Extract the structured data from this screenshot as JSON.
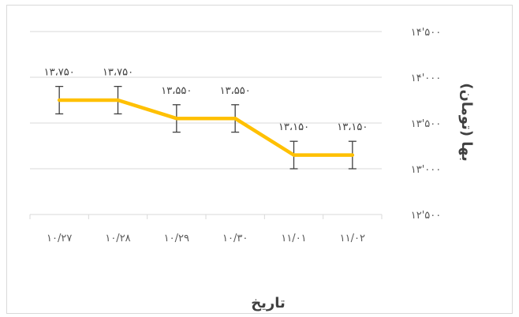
{
  "chart_data": {
    "type": "line",
    "title": "",
    "xlabel": "تاریخ",
    "ylabel": "بها (تومان)",
    "categories": [
      "۱۰/۲۷",
      "۱۰/۲۸",
      "۱۰/۲۹",
      "۱۰/۳۰",
      "۱۱/۰۱",
      "۱۱/۰۲"
    ],
    "series": [
      {
        "values": [
          13750,
          13750,
          13550,
          13550,
          13150,
          13150
        ],
        "labels": [
          "۱۳،۷۵۰",
          "۱۳،۷۵۰",
          "۱۳،۵۵۰",
          "۱۳،۵۵۰",
          "۱۳،۱۵۰",
          "۱۳،۱۵۰"
        ],
        "error": 150,
        "color": "#FFC000"
      }
    ],
    "ylim": [
      12500,
      14500
    ],
    "yticks": [
      12500,
      13000,
      13500,
      14000,
      14500
    ],
    "ytick_labels": [
      "۱۲'۵۰۰",
      "۱۳'۰۰۰",
      "۱۳'۵۰۰",
      "۱۴'۰۰۰",
      "۱۴'۵۰۰"
    ],
    "y_axis_side": "right",
    "grid": true,
    "legend": "none",
    "gridline_color": "#d9d9d9",
    "errorbar_color": "#404040"
  }
}
